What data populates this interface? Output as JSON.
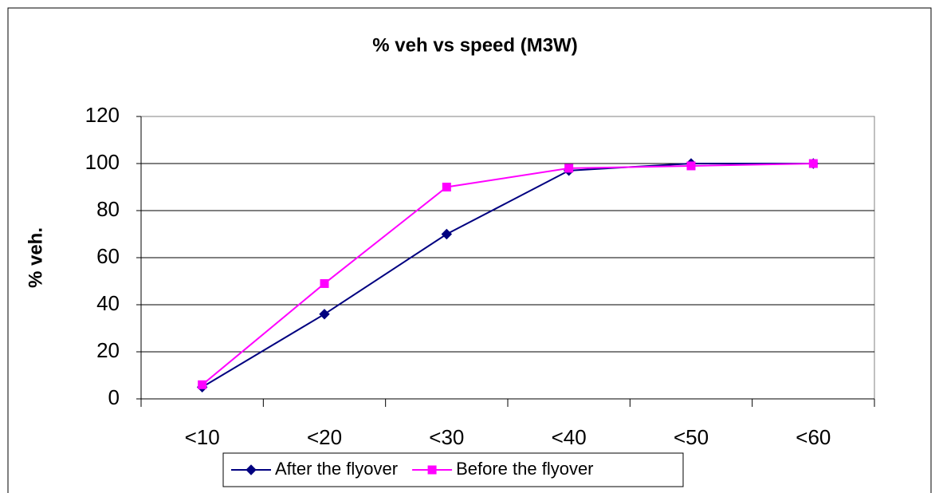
{
  "chart_data": {
    "type": "line",
    "title": "% veh vs speed (M3W)",
    "y_label": "% veh.",
    "categories": [
      "<10",
      "<20",
      "<30",
      "<40",
      "<50",
      "<60"
    ],
    "series": [
      {
        "name": "After the flyover",
        "color": "#000080",
        "marker": "diamond",
        "values": [
          5,
          36,
          70,
          97,
          100,
          100
        ]
      },
      {
        "name": "Before the flyover",
        "color": "#ff00ff",
        "marker": "square",
        "values": [
          6,
          49,
          90,
          98,
          99,
          100
        ]
      }
    ],
    "ylim": [
      0,
      120
    ],
    "yticks": [
      0,
      20,
      40,
      60,
      80,
      100,
      120
    ],
    "grid": true,
    "legend": "bottom"
  }
}
